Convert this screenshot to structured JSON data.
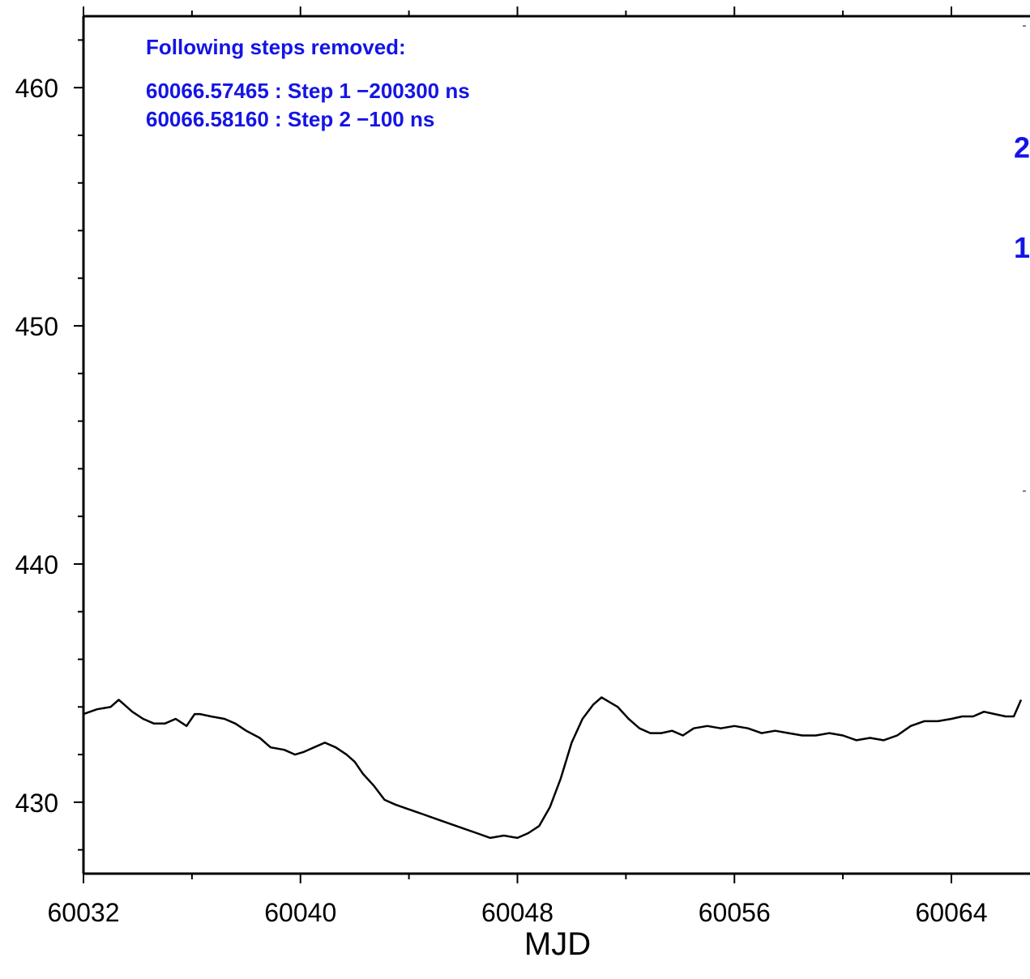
{
  "chart_data": {
    "type": "line",
    "title": "",
    "xlabel": "MJD",
    "ylabel": "",
    "xlim": [
      60032,
      66.5
    ],
    "ylim": [
      427,
      463
    ],
    "x_ticks": [
      60032,
      60040,
      60048,
      60056,
      60064
    ],
    "y_ticks": [
      430,
      440,
      450,
      460
    ],
    "annotations": {
      "heading": "Following steps removed:",
      "lines": [
        "60066.57465 : Step 1 −200300 ns",
        "60066.58160 : Step 2 −100 ns"
      ]
    },
    "step_markers": [
      {
        "label": "2",
        "y": 457.5
      },
      {
        "label": "1",
        "y": 453.3
      }
    ],
    "series": [
      {
        "color": "#000000",
        "x": [
          60032.0,
          60032.5,
          60033.0,
          60033.3,
          60033.5,
          60033.8,
          60034.2,
          60034.6,
          60035.0,
          60035.4,
          60035.8,
          60036.1,
          60036.3,
          60036.7,
          60037.2,
          60037.6,
          60038.0,
          60038.5,
          60038.9,
          60039.4,
          60039.8,
          60040.1,
          60040.5,
          60040.9,
          60041.3,
          60041.7,
          60042.0,
          60042.3,
          60042.7,
          60043.1,
          60043.5,
          60044.0,
          60044.5,
          60045.0,
          60045.5,
          60046.0,
          60046.5,
          60047.0,
          60047.5,
          60048.0,
          60048.4,
          60048.8,
          60049.2,
          60049.6,
          60050.0,
          60050.4,
          60050.8,
          60051.1,
          60051.4,
          60051.7,
          60052.1,
          60052.5,
          60052.9,
          60053.3,
          60053.7,
          60054.1,
          60054.5,
          60055.0,
          60055.5,
          60056.0,
          60056.5,
          60057.0,
          60057.5,
          60058.0,
          60058.5,
          60059.0,
          60059.5,
          60060.0,
          60060.5,
          60061.0,
          60061.5,
          60062.0,
          60062.5,
          60063.0,
          60063.5,
          60064.0,
          60064.4,
          60064.8,
          60065.2,
          60065.6,
          60066.0,
          60066.3,
          60066.57
        ],
        "y": [
          433.7,
          433.9,
          434.0,
          434.3,
          434.1,
          433.8,
          433.5,
          433.3,
          433.3,
          433.5,
          433.2,
          433.7,
          433.7,
          433.6,
          433.5,
          433.3,
          433.0,
          432.7,
          432.3,
          432.2,
          432.0,
          432.1,
          432.3,
          432.5,
          432.3,
          432.0,
          431.7,
          431.2,
          430.7,
          430.1,
          429.9,
          429.7,
          429.5,
          429.3,
          429.1,
          428.9,
          428.7,
          428.5,
          428.6,
          428.5,
          428.7,
          429.0,
          429.8,
          431.0,
          432.5,
          433.5,
          434.1,
          434.4,
          434.2,
          434.0,
          433.5,
          433.1,
          432.9,
          432.9,
          433.0,
          432.8,
          433.1,
          433.2,
          433.1,
          433.2,
          433.1,
          432.9,
          433.0,
          432.9,
          432.8,
          432.8,
          432.9,
          432.8,
          432.6,
          432.7,
          432.6,
          432.8,
          433.2,
          433.4,
          433.4,
          433.5,
          433.6,
          433.6,
          433.8,
          433.7,
          433.6,
          433.6,
          434.3
        ]
      }
    ]
  }
}
